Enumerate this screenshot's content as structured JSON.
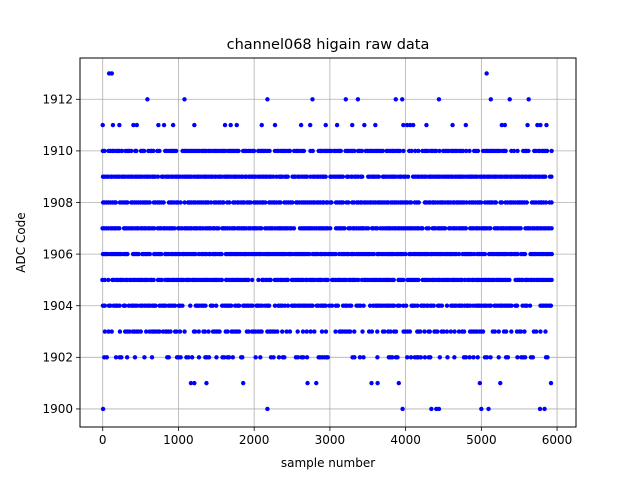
{
  "chart_data": {
    "type": "scatter",
    "title": "channel068 higain raw data",
    "xlabel": "sample number",
    "ylabel": "ADC Code",
    "xlim": [
      -300,
      6250
    ],
    "ylim": [
      1899.3,
      1913.6
    ],
    "xticks": [
      0,
      1000,
      2000,
      3000,
      4000,
      5000,
      6000
    ],
    "yticks": [
      1900,
      1902,
      1904,
      1906,
      1908,
      1910,
      1912
    ],
    "grid": true,
    "marker_color": "#0000ff",
    "x_range": [
      0,
      5940
    ],
    "dense_levels": [
      1904,
      1905,
      1906,
      1907,
      1908,
      1909,
      1910
    ],
    "semi_dense_levels": [
      1902,
      1903
    ],
    "sparse_points": [
      {
        "x": 5,
        "y": 1900
      },
      {
        "x": 2175,
        "y": 1900
      },
      {
        "x": 3960,
        "y": 1900
      },
      {
        "x": 4340,
        "y": 1900
      },
      {
        "x": 4405,
        "y": 1900
      },
      {
        "x": 4440,
        "y": 1900
      },
      {
        "x": 5000,
        "y": 1900
      },
      {
        "x": 5095,
        "y": 1900
      },
      {
        "x": 5775,
        "y": 1900
      },
      {
        "x": 5835,
        "y": 1900
      },
      {
        "x": 1165,
        "y": 1901
      },
      {
        "x": 1210,
        "y": 1901
      },
      {
        "x": 1370,
        "y": 1901
      },
      {
        "x": 1855,
        "y": 1901
      },
      {
        "x": 2705,
        "y": 1901
      },
      {
        "x": 2820,
        "y": 1901
      },
      {
        "x": 3550,
        "y": 1901
      },
      {
        "x": 3630,
        "y": 1901
      },
      {
        "x": 3910,
        "y": 1901
      },
      {
        "x": 4980,
        "y": 1901
      },
      {
        "x": 5250,
        "y": 1901
      },
      {
        "x": 5920,
        "y": 1901
      },
      {
        "x": 0,
        "y": 1911
      },
      {
        "x": 135,
        "y": 1911
      },
      {
        "x": 220,
        "y": 1911
      },
      {
        "x": 405,
        "y": 1911
      },
      {
        "x": 450,
        "y": 1911
      },
      {
        "x": 735,
        "y": 1911
      },
      {
        "x": 810,
        "y": 1911
      },
      {
        "x": 930,
        "y": 1911
      },
      {
        "x": 1210,
        "y": 1911
      },
      {
        "x": 1615,
        "y": 1911
      },
      {
        "x": 1690,
        "y": 1911
      },
      {
        "x": 1770,
        "y": 1911
      },
      {
        "x": 2100,
        "y": 1911
      },
      {
        "x": 2275,
        "y": 1911
      },
      {
        "x": 2620,
        "y": 1911
      },
      {
        "x": 2740,
        "y": 1911
      },
      {
        "x": 2945,
        "y": 1911
      },
      {
        "x": 3095,
        "y": 1911
      },
      {
        "x": 3295,
        "y": 1911
      },
      {
        "x": 3455,
        "y": 1911
      },
      {
        "x": 3600,
        "y": 1911
      },
      {
        "x": 3970,
        "y": 1911
      },
      {
        "x": 4020,
        "y": 1911
      },
      {
        "x": 4060,
        "y": 1911
      },
      {
        "x": 4100,
        "y": 1911
      },
      {
        "x": 4275,
        "y": 1911
      },
      {
        "x": 4620,
        "y": 1911
      },
      {
        "x": 4795,
        "y": 1911
      },
      {
        "x": 5270,
        "y": 1911
      },
      {
        "x": 5310,
        "y": 1911
      },
      {
        "x": 5610,
        "y": 1911
      },
      {
        "x": 5740,
        "y": 1911
      },
      {
        "x": 5780,
        "y": 1911
      },
      {
        "x": 5860,
        "y": 1911
      },
      {
        "x": 590,
        "y": 1912
      },
      {
        "x": 1080,
        "y": 1912
      },
      {
        "x": 2175,
        "y": 1912
      },
      {
        "x": 2770,
        "y": 1912
      },
      {
        "x": 3210,
        "y": 1912
      },
      {
        "x": 3370,
        "y": 1912
      },
      {
        "x": 3870,
        "y": 1912
      },
      {
        "x": 3955,
        "y": 1912
      },
      {
        "x": 4440,
        "y": 1912
      },
      {
        "x": 5125,
        "y": 1912
      },
      {
        "x": 5375,
        "y": 1912
      },
      {
        "x": 5625,
        "y": 1912
      },
      {
        "x": 85,
        "y": 1913
      },
      {
        "x": 120,
        "y": 1913
      },
      {
        "x": 5070,
        "y": 1913
      }
    ]
  }
}
